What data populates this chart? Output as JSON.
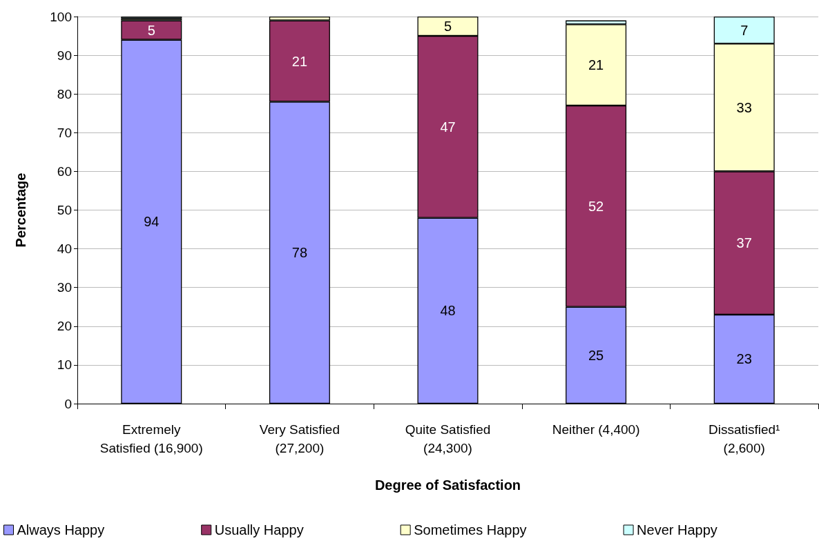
{
  "chart_data": {
    "type": "bar",
    "stacked": true,
    "xlabel": "Degree of Satisfaction",
    "ylabel": "Percentage",
    "categories": [
      "Extremely\nSatisfied (16,900)",
      "Very Satisfied\n(27,200)",
      "Quite Satisfied\n(24,300)",
      "Neither (4,400)",
      "Dissatisfied¹\n(2,600)"
    ],
    "series": [
      {
        "name": "Always Happy",
        "color": "#9999ff",
        "values": [
          94,
          78,
          48,
          25,
          23
        ],
        "value_labels": [
          "94",
          "78",
          "48",
          "25",
          "23"
        ]
      },
      {
        "name": "Usually Happy",
        "color": "#993366",
        "values": [
          5,
          21,
          47,
          52,
          37
        ],
        "value_labels": [
          "5",
          "21",
          "47",
          "52",
          "37"
        ]
      },
      {
        "name": "Sometimes Happy",
        "color": "#ffffcc",
        "values": [
          0.5,
          1,
          5,
          21,
          33
        ],
        "value_labels": [
          null,
          null,
          "5",
          "21",
          "33"
        ]
      },
      {
        "name": "Never Happy",
        "color": "#ccffff",
        "values": [
          0.5,
          null,
          null,
          1,
          7
        ],
        "value_labels": [
          null,
          null,
          null,
          null,
          "7"
        ]
      }
    ],
    "ylim": [
      0,
      100
    ],
    "yticks": [
      0,
      10,
      20,
      30,
      40,
      50,
      60,
      70,
      80,
      90,
      100
    ],
    "grid": "y",
    "legend": "bottom"
  }
}
